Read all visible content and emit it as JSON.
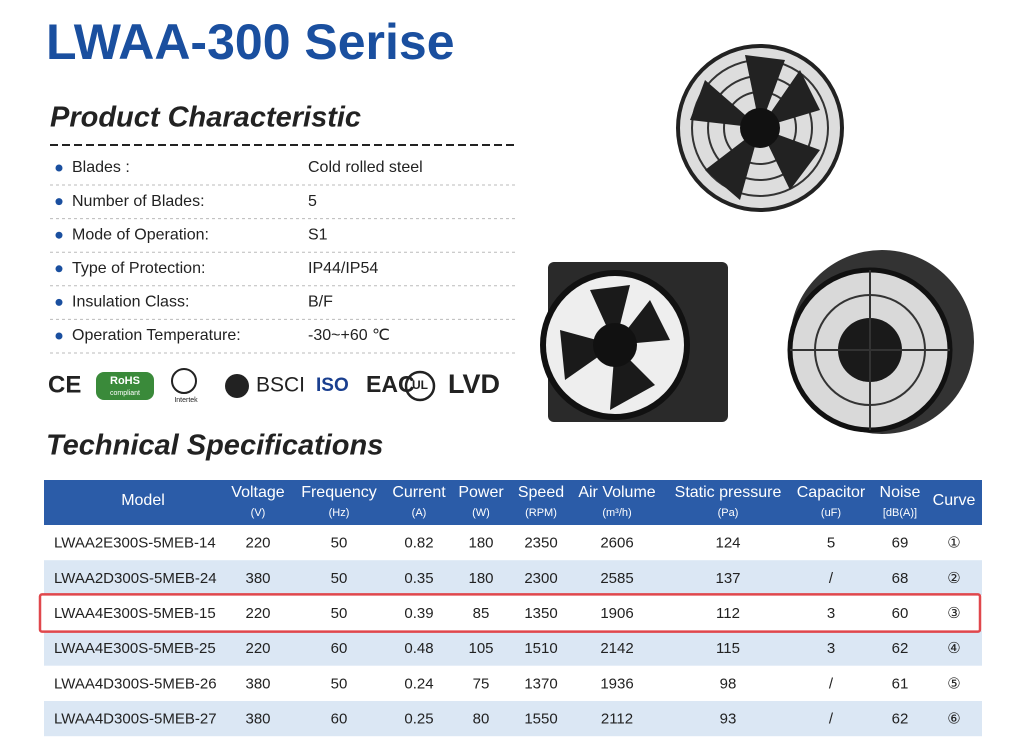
{
  "header": {
    "title": "LWAA-300 Serise"
  },
  "characteristics": {
    "title": "Product Characteristic",
    "rows": [
      [
        "Blades :",
        "Cold rolled steel"
      ],
      [
        "Number of Blades:",
        "5"
      ],
      [
        "Mode of Operation:",
        "S1"
      ],
      [
        "Type of Protection:",
        "IP44/IP54"
      ],
      [
        "Insulation Class:",
        "B/F"
      ],
      [
        "Operation Temperature:",
        "-30~+60 ℃"
      ]
    ]
  },
  "certifications": [
    "CE",
    "RoHS",
    "compliant",
    "Intertek",
    "BSCI",
    "ISO",
    "EAC",
    "UL",
    "LVD"
  ],
  "specs": {
    "title": "Technical Specifications",
    "columns": [
      {
        "name": "Model"
      },
      {
        "name": "Voltage",
        "unit": "(V)"
      },
      {
        "name": "Frequency",
        "unit": "(Hz)"
      },
      {
        "name": "Current",
        "unit": "(A)"
      },
      {
        "name": "Power",
        "unit": "(W)"
      },
      {
        "name": "Speed",
        "unit": "(RPM)"
      },
      {
        "name": "Air Volume",
        "unit": "(m³/h)"
      },
      {
        "name": "Static pressure",
        "unit": "(Pa)"
      },
      {
        "name": "Capacitor",
        "unit": "(uF)"
      },
      {
        "name": "Noise",
        "unit": "[dB(A)]"
      },
      {
        "name": "Curve"
      }
    ],
    "rows": [
      [
        "LWAA2E300S-5MEB-14",
        "220",
        "50",
        "0.82",
        "180",
        "2350",
        "2606",
        "124",
        "5",
        "69",
        "①"
      ],
      [
        "LWAA2D300S-5MEB-24",
        "380",
        "50",
        "0.35",
        "180",
        "2300",
        "2585",
        "137",
        "/",
        "68",
        "②"
      ],
      [
        "LWAA4E300S-5MEB-15",
        "220",
        "50",
        "0.39",
        "85",
        "1350",
        "1906",
        "112",
        "3",
        "60",
        "③"
      ],
      [
        "LWAA4E300S-5MEB-25",
        "220",
        "60",
        "0.48",
        "105",
        "1510",
        "2142",
        "115",
        "3",
        "62",
        "④"
      ],
      [
        "LWAA4D300S-5MEB-26",
        "380",
        "50",
        "0.24",
        "75",
        "1370",
        "1936",
        "98",
        "/",
        "61",
        "⑤"
      ],
      [
        "LWAA4D300S-5MEB-27",
        "380",
        "60",
        "0.25",
        "80",
        "1550",
        "2112",
        "93",
        "/",
        "62",
        "⑥"
      ]
    ],
    "highlight_row": 2
  }
}
